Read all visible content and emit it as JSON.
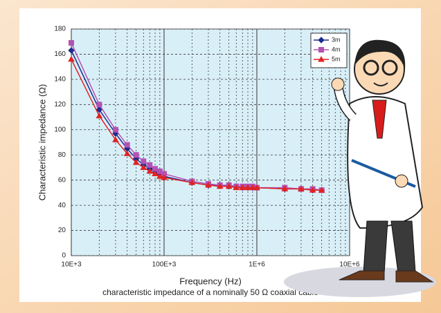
{
  "chart_data": {
    "type": "line",
    "x_label": "Frequency (Hz)",
    "caption": "characteristic impedance of a nominally 50 Ω coaxial cable",
    "y_label": "Characteristic impedance  (Ω)",
    "x_scale": "log",
    "xlim": [
      10000,
      10000000
    ],
    "xticks": [
      {
        "value": 10000,
        "label": "10E+3"
      },
      {
        "value": 100000,
        "label": "100E+3"
      },
      {
        "value": 1000000,
        "label": "1E+6"
      },
      {
        "value": 10000000,
        "label": "10E+6"
      }
    ],
    "x_minor_gridlines": [
      20000,
      30000,
      40000,
      50000,
      60000,
      70000,
      80000,
      90000,
      200000,
      300000,
      400000,
      500000,
      600000,
      700000,
      800000,
      900000,
      2000000,
      3000000,
      4000000,
      5000000,
      6000000,
      7000000,
      8000000,
      9000000
    ],
    "ylim": [
      0,
      180
    ],
    "yticks": [
      0,
      20,
      40,
      60,
      80,
      100,
      120,
      140,
      160,
      180
    ],
    "grid": true,
    "legend": "top-right",
    "x": [
      10000,
      20000,
      30000,
      40000,
      50000,
      60000,
      70000,
      80000,
      90000,
      100000,
      200000,
      300000,
      400000,
      500000,
      600000,
      700000,
      800000,
      900000,
      1000000,
      2000000,
      3000000,
      4000000,
      5000000
    ],
    "series": [
      {
        "name": "3m",
        "color": "#1c2b8c",
        "marker": "diamond",
        "values": [
          163,
          116,
          97,
          85,
          77,
          72,
          69,
          66,
          64,
          63,
          58,
          56,
          56,
          55,
          55,
          54,
          54,
          54,
          54,
          53,
          53,
          52,
          52
        ]
      },
      {
        "name": "4m",
        "color": "#b452b4",
        "marker": "square",
        "values": [
          169,
          120,
          100,
          88,
          80,
          75,
          72,
          69,
          67,
          65,
          59,
          57,
          56,
          56,
          55,
          55,
          55,
          55,
          54,
          54,
          53,
          53,
          52
        ]
      },
      {
        "name": "5m",
        "color": "#e02424",
        "marker": "triangle",
        "values": [
          156,
          111,
          92,
          81,
          74,
          70,
          67,
          65,
          63,
          62,
          58,
          56,
          55,
          55,
          54,
          54,
          54,
          54,
          54,
          53,
          53,
          52,
          52
        ]
      }
    ]
  }
}
